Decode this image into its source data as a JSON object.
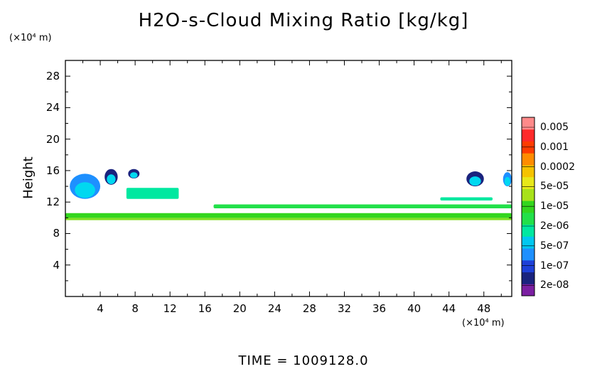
{
  "chart_data": {
    "type": "heatmap",
    "title": "H2O-s-Cloud Mixing Ratio [kg/kg]",
    "ylabel": "Height",
    "xlabel": "",
    "x_unit": "(×10⁴ m)",
    "y_unit": "(×10⁴ m)",
    "x_ticks": [
      "4",
      "8",
      "12",
      "16",
      "20",
      "24",
      "28",
      "32",
      "36",
      "40",
      "44",
      "48"
    ],
    "y_ticks": [
      "4",
      "8",
      "12",
      "16",
      "20",
      "24",
      "28"
    ],
    "xlim": [
      0,
      51.2
    ],
    "ylim": [
      0,
      30
    ],
    "footer": "TIME  =  1009128.0",
    "colorbar": {
      "labels": [
        "0.005",
        "0.001",
        "0.0002",
        "5e-05",
        "1e-05",
        "2e-06",
        "5e-07",
        "1e-07",
        "2e-08"
      ],
      "colors": [
        "#7b1fa2",
        "#1a237e",
        "#1e40d8",
        "#1e90ff",
        "#00c8f0",
        "#00e8a0",
        "#22e04a",
        "#33d61e",
        "#a8e21a",
        "#e8e81a",
        "#f5c300",
        "#ff8c00",
        "#ff3c00",
        "#ff2a2a",
        "#ff8a8a"
      ]
    },
    "features": [
      {
        "type": "layer",
        "x": [
          0,
          51.2
        ],
        "y": [
          9.7,
          10.0
        ],
        "level": "1e-05",
        "color": "#7fe020"
      },
      {
        "type": "layer",
        "x": [
          0,
          51.2
        ],
        "y": [
          10.0,
          10.6
        ],
        "level": "1e-05",
        "color": "#33d61e"
      },
      {
        "type": "layer",
        "x": [
          17,
          51.2
        ],
        "y": [
          11.2,
          11.7
        ],
        "level": "2e-06",
        "color": "#22e04a"
      },
      {
        "type": "layer",
        "x": [
          7,
          13
        ],
        "y": [
          12.4,
          13.8
        ],
        "level": "2e-06",
        "color": "#00e8a0"
      },
      {
        "type": "patch",
        "x": [
          0.5,
          4.0
        ],
        "y": [
          12.4,
          15.6
        ],
        "level": "5e-07",
        "color": "#1e90ff"
      },
      {
        "type": "patch",
        "x": [
          4.5,
          6.0
        ],
        "y": [
          14.2,
          16.2
        ],
        "level": "1e-07",
        "color": "#1a237e"
      },
      {
        "type": "patch",
        "x": [
          7.2,
          8.5
        ],
        "y": [
          15.0,
          16.2
        ],
        "level": "1e-07",
        "color": "#1a237e"
      },
      {
        "type": "patch",
        "x": [
          46.0,
          48.0
        ],
        "y": [
          14.0,
          15.9
        ],
        "level": "1e-07",
        "color": "#1a237e"
      },
      {
        "type": "patch",
        "x": [
          50.2,
          51.2
        ],
        "y": [
          14.0,
          15.8
        ],
        "level": "5e-07",
        "color": "#1e90ff"
      },
      {
        "type": "layer",
        "x": [
          43,
          49
        ],
        "y": [
          12.2,
          12.6
        ],
        "level": "2e-06",
        "color": "#00e8a0"
      }
    ]
  }
}
